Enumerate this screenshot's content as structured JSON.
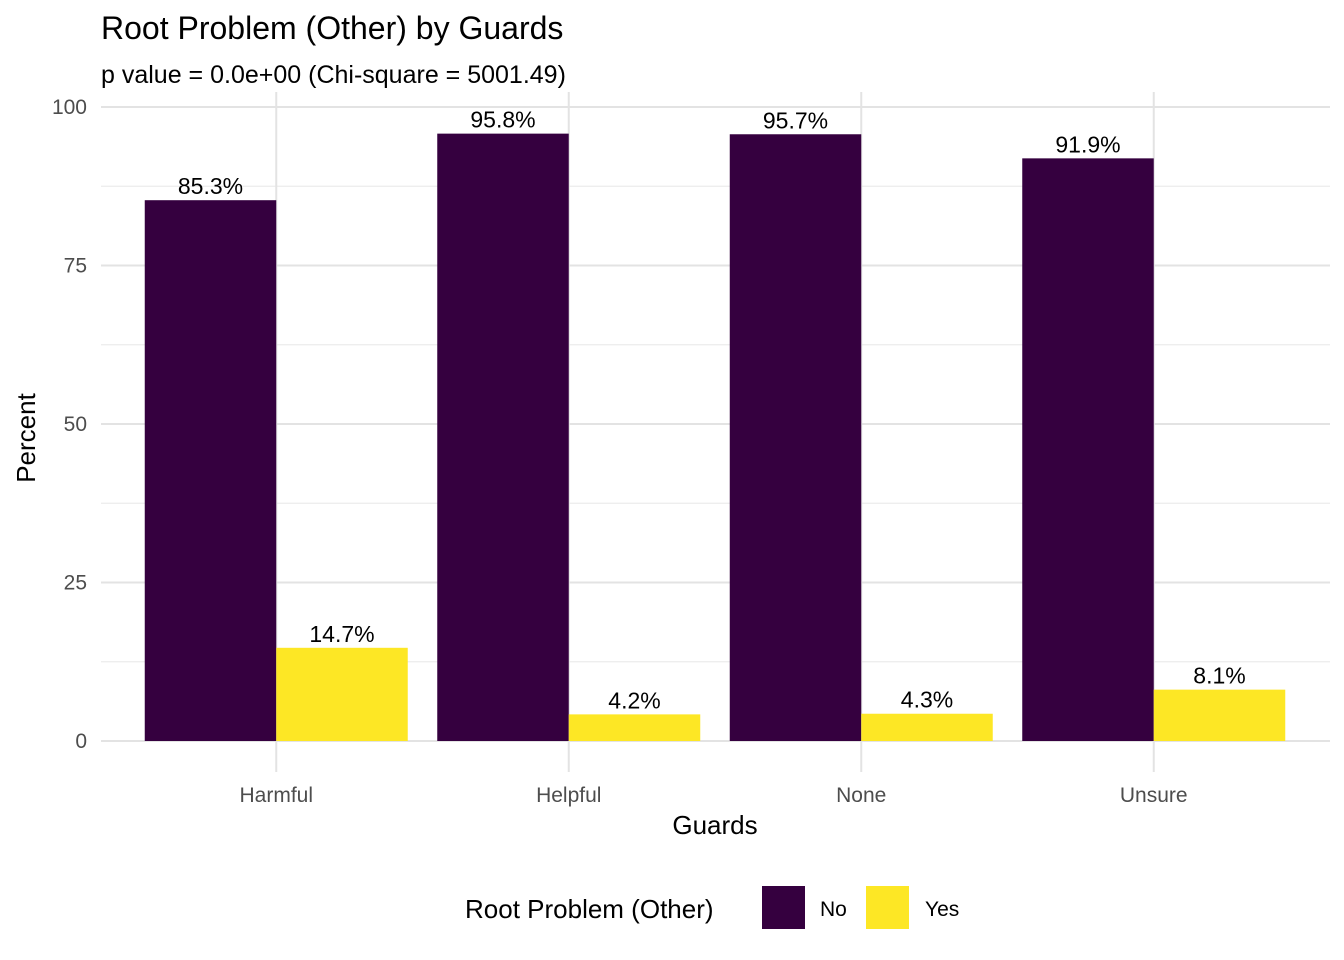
{
  "chart_data": {
    "type": "bar",
    "title": "Root Problem (Other) by Guards",
    "subtitle": "p value = 0.0e+00 (Chi-square = 5001.49)",
    "xlabel": "Guards",
    "ylabel": "Percent",
    "categories": [
      "Harmful",
      "Helpful",
      "None",
      "Unsure"
    ],
    "series": [
      {
        "name": "No",
        "color": "#35003F",
        "values": [
          85.3,
          95.8,
          95.7,
          91.9
        ],
        "labels": [
          "85.3%",
          "95.8%",
          "95.7%",
          "91.9%"
        ]
      },
      {
        "name": "Yes",
        "color": "#FDE725",
        "values": [
          14.7,
          4.2,
          4.3,
          8.1
        ],
        "labels": [
          "14.7%",
          "4.2%",
          "4.3%",
          "8.1%"
        ]
      }
    ],
    "ylim": [
      0,
      100
    ],
    "yticks": [
      0,
      25,
      50,
      75,
      100
    ],
    "ytick_labels": [
      "0",
      "25",
      "50",
      "75",
      "100"
    ],
    "grid": true,
    "legend": {
      "title": "Root Problem (Other)",
      "position": "bottom"
    }
  }
}
